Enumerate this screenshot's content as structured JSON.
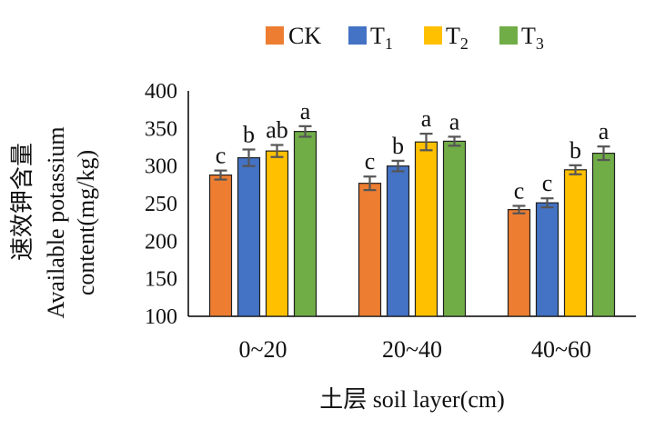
{
  "chart_data": {
    "type": "bar",
    "categories": [
      "0~20",
      "20~40",
      "40~60"
    ],
    "series": [
      {
        "name": "CK",
        "color": "#ED7D31",
        "values": [
          288,
          277,
          242
        ],
        "errors": [
          6,
          9,
          5
        ],
        "letters": [
          "c",
          "c",
          "c"
        ]
      },
      {
        "name": "T1",
        "color": "#4472C4",
        "values": [
          311,
          300,
          251
        ],
        "errors": [
          11,
          7,
          6
        ],
        "letters": [
          "b",
          "b",
          "c"
        ]
      },
      {
        "name": "T2",
        "color": "#FFC000",
        "values": [
          320,
          332,
          295
        ],
        "errors": [
          8,
          11,
          6
        ],
        "letters": [
          "ab",
          "a",
          "b"
        ]
      },
      {
        "name": "T3",
        "color": "#70AD47",
        "values": [
          346,
          333,
          317
        ],
        "errors": [
          7,
          6,
          9
        ],
        "letters": [
          "a",
          "a",
          "a"
        ]
      }
    ],
    "legend_labels": [
      {
        "main": "CK",
        "sub": ""
      },
      {
        "main": "T",
        "sub": "1"
      },
      {
        "main": "T",
        "sub": "2"
      },
      {
        "main": "T",
        "sub": "3"
      }
    ],
    "xlabel": "土层 soil layer(cm)",
    "ylabel_cn": "速效钾含量",
    "ylabel_line1": "Available potassium",
    "ylabel_line2": "content(mg/kg)",
    "ylim": [
      100,
      400
    ],
    "yticks": [
      "100",
      "150",
      "200",
      "250",
      "300",
      "350",
      "400"
    ],
    "legend_position": "top",
    "grid": false
  }
}
